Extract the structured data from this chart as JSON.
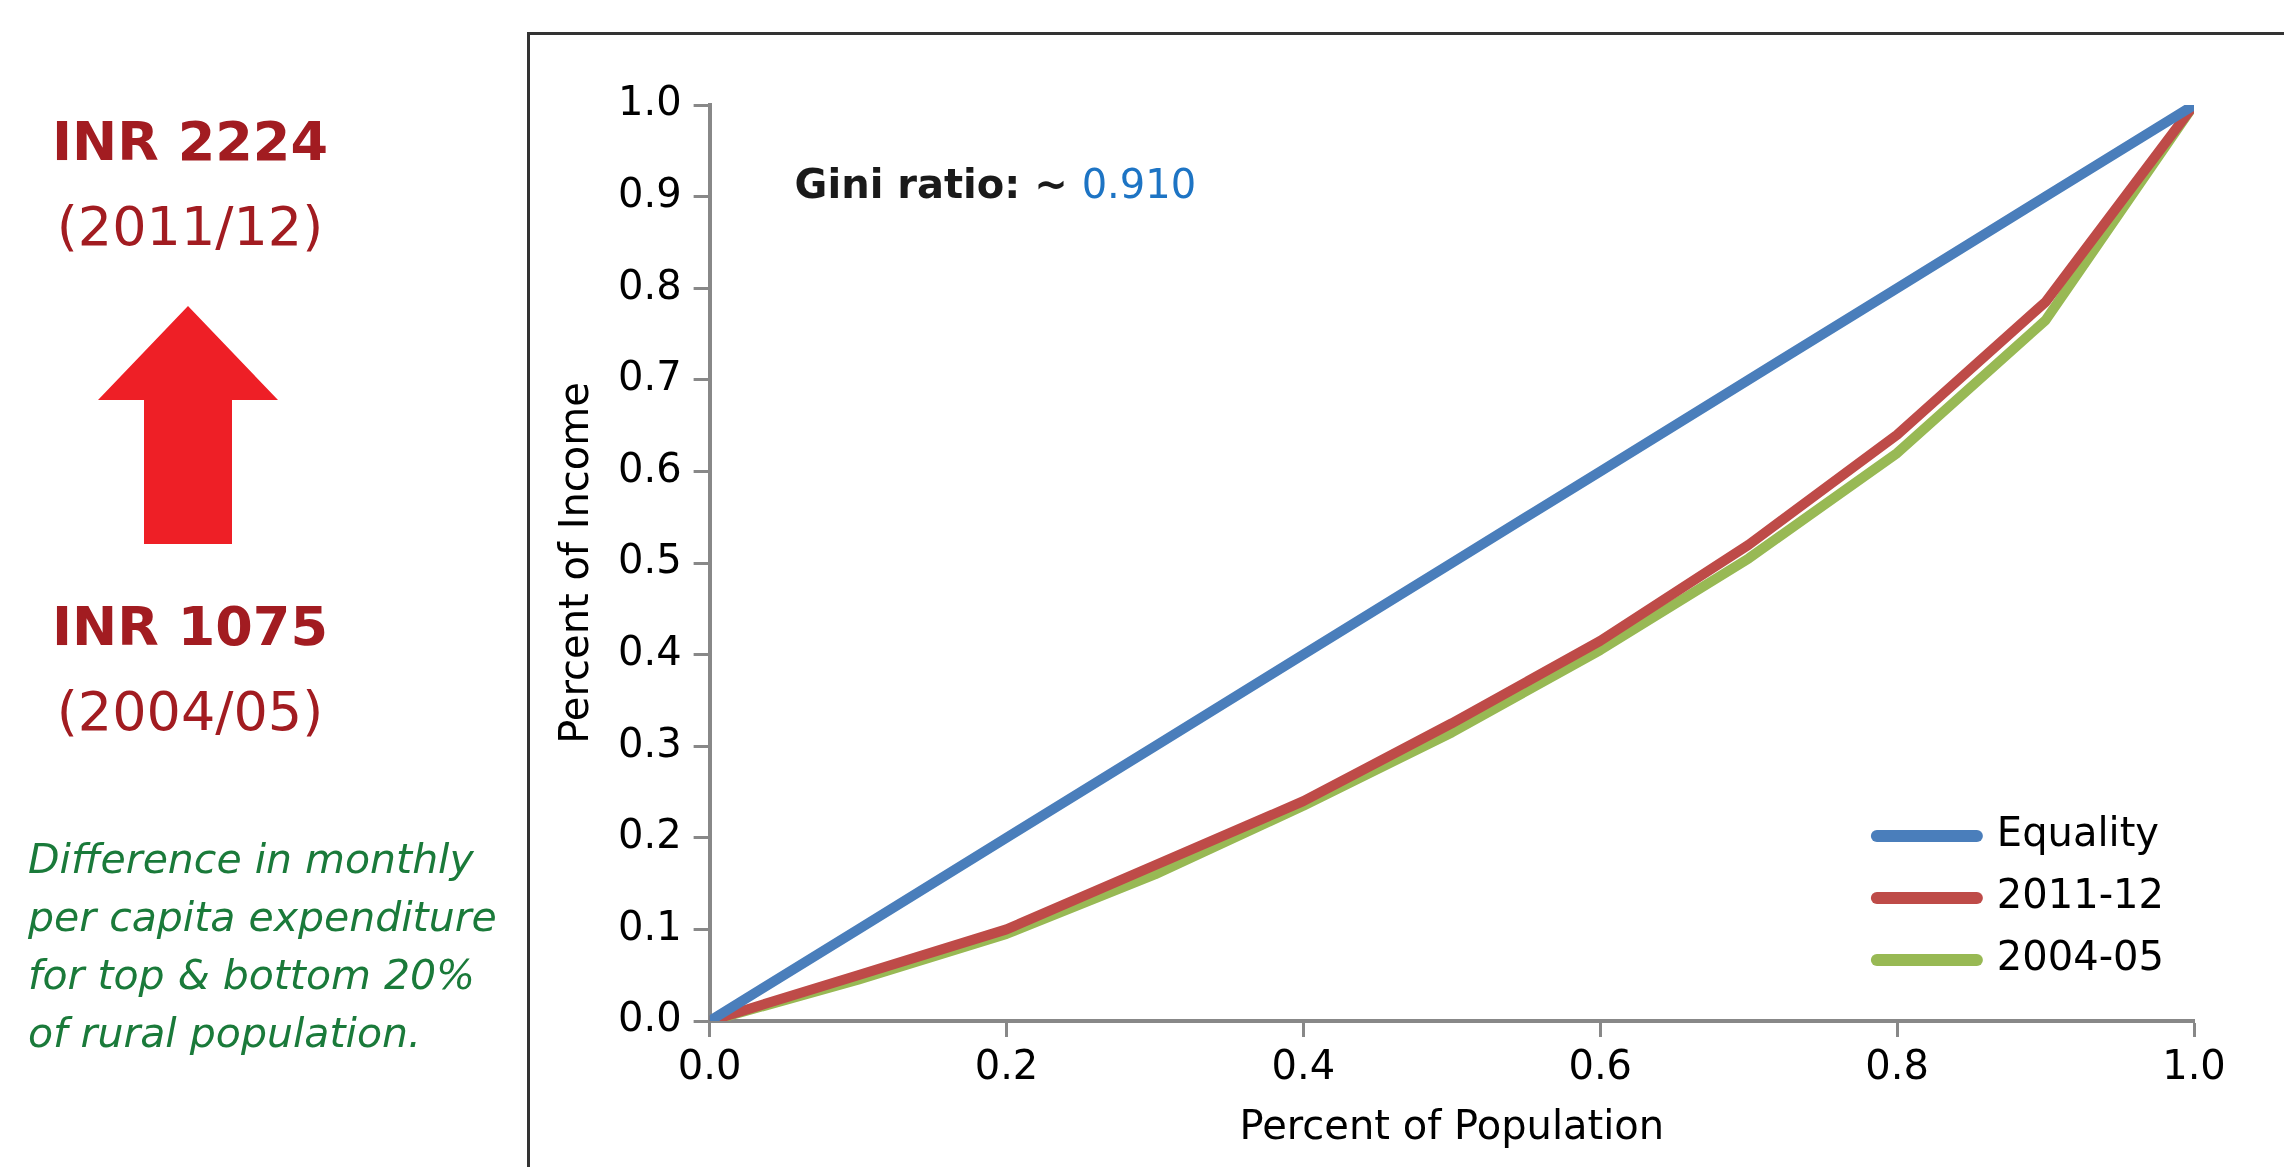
{
  "chart_data": {
    "type": "line",
    "xlabel": "Percent of Population",
    "ylabel": "Percent of Income",
    "x": [
      0,
      0.1,
      0.2,
      0.3,
      0.4,
      0.5,
      0.6,
      0.7,
      0.8,
      0.9,
      1.0
    ],
    "series": [
      {
        "name": "Equality",
        "color": "#4a7ebb",
        "values": [
          0,
          0.1,
          0.2,
          0.3,
          0.4,
          0.5,
          0.6,
          0.7,
          0.8,
          0.9,
          1.0
        ]
      },
      {
        "name": "2011-12",
        "color": "#be4b48",
        "values": [
          0,
          0.05,
          0.1,
          0.17,
          0.24,
          0.325,
          0.415,
          0.52,
          0.64,
          0.785,
          1.0
        ]
      },
      {
        "name": "2004-05",
        "color": "#98b954",
        "values": [
          0,
          0.045,
          0.095,
          0.16,
          0.235,
          0.315,
          0.405,
          0.505,
          0.62,
          0.765,
          1.0
        ]
      }
    ],
    "xlim": [
      0,
      1
    ],
    "xticks": [
      {
        "value": 0,
        "label": "0.0"
      },
      {
        "value": 0.2,
        "label": "0.2"
      },
      {
        "value": 0.4,
        "label": "0.4"
      },
      {
        "value": 0.6,
        "label": "0.6"
      },
      {
        "value": 0.8,
        "label": "0.8"
      },
      {
        "value": 1,
        "label": "1.0"
      }
    ],
    "ylim": [
      0,
      1
    ],
    "yticks": [
      {
        "value": 0,
        "label": "0.0"
      },
      {
        "value": 0.1,
        "label": "0.1"
      },
      {
        "value": 0.2,
        "label": "0.2"
      },
      {
        "value": 0.3,
        "label": "0.3"
      },
      {
        "value": 0.4,
        "label": "0.4"
      },
      {
        "value": 0.5,
        "label": "0.5"
      },
      {
        "value": 0.6,
        "label": "0.6"
      },
      {
        "value": 0.7,
        "label": "0.7"
      },
      {
        "value": 0.8,
        "label": "0.8"
      },
      {
        "value": 0.9,
        "label": "0.9"
      },
      {
        "value": 1,
        "label": "1.0"
      }
    ],
    "grid": false,
    "legend": "bottom right",
    "marker": "none",
    "line_style": "solid",
    "annotations": [
      "INR 2224",
      "(2011/12)",
      "INR 1075",
      "(2004/05)",
      "Difference in monthly per capita expenditure for top & bottom 20% of rural population.",
      "Gini ratio: ~ 0.910"
    ]
  }
}
